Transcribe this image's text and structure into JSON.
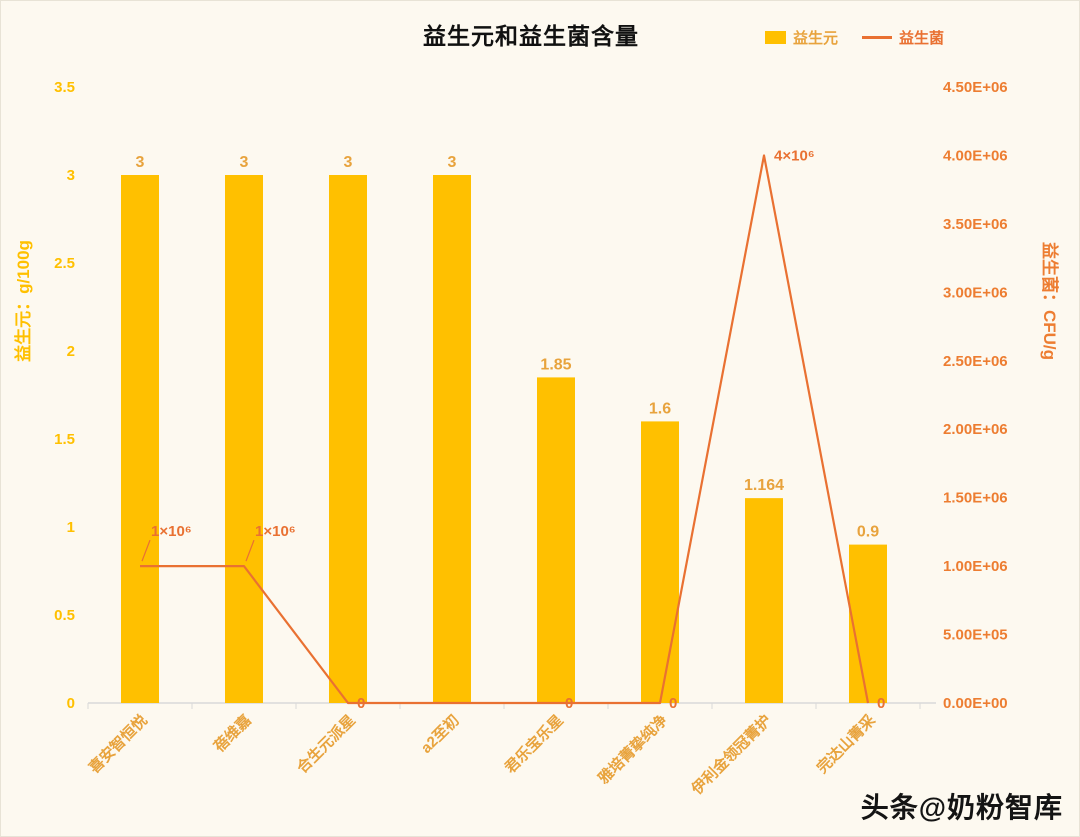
{
  "title": "益生元和益生菌含量",
  "legend": [
    {
      "label": "益生元",
      "type": "bar",
      "color": "#FFC000",
      "label_color": "#E8A33D"
    },
    {
      "label": "益生菌",
      "type": "line",
      "color": "#E97132",
      "label_color": "#E97132"
    }
  ],
  "watermark": "头条@奶粉智库",
  "chart_data": {
    "type": "bar+line",
    "title": "益生元和益生菌含量",
    "categories": [
      "喜安智恒悦",
      "蓓维嘉",
      "合生元派星",
      "a2至初",
      "君乐宝乐星",
      "雅培菁挚纯净",
      "伊利金领冠菁护",
      "完达山菁采"
    ],
    "series": [
      {
        "name": "益生元",
        "type": "bar",
        "axis": "left",
        "values": [
          3,
          3,
          3,
          3,
          1.85,
          1.6,
          1.164,
          0.9
        ],
        "labels": [
          "3",
          "3",
          "3",
          "3",
          "1.85",
          "1.6",
          "1.164",
          "0.9"
        ]
      },
      {
        "name": "益生菌",
        "type": "line",
        "axis": "right",
        "values": [
          1000000,
          1000000,
          0,
          0,
          0,
          0,
          4000000,
          0
        ],
        "labels": [
          "1×10⁶",
          "1×10⁶",
          "0",
          "",
          "0",
          "0",
          "4×10⁶",
          "0"
        ]
      }
    ],
    "left_axis": {
      "title": "益生元：g/100g",
      "min": 0,
      "max": 3.5,
      "step": 0.5,
      "ticks": [
        "0",
        "0.5",
        "1",
        "1.5",
        "2",
        "2.5",
        "3",
        "3.5"
      ]
    },
    "right_axis": {
      "title": "益生菌：CFU/g",
      "min": 0,
      "max": 4500000,
      "step": 500000,
      "ticks": [
        "0.00E+00",
        "5.00E+05",
        "1.00E+06",
        "1.50E+06",
        "2.00E+06",
        "2.50E+06",
        "3.00E+06",
        "3.50E+06",
        "4.00E+06",
        "4.50E+06"
      ]
    },
    "grid": "off",
    "legend_position": "top-right",
    "colors": {
      "bar": "#FFC000",
      "line": "#E97132",
      "bar_label": "#E8A33D",
      "line_label": "#E97132",
      "category_label": "#E8A33D",
      "left_axis": "#FFC000",
      "right_axis": "#ED7D31",
      "axis_line": "#D9D9D9",
      "background": "#FDF9F0",
      "title": "#111111",
      "watermark": "#141414"
    }
  }
}
